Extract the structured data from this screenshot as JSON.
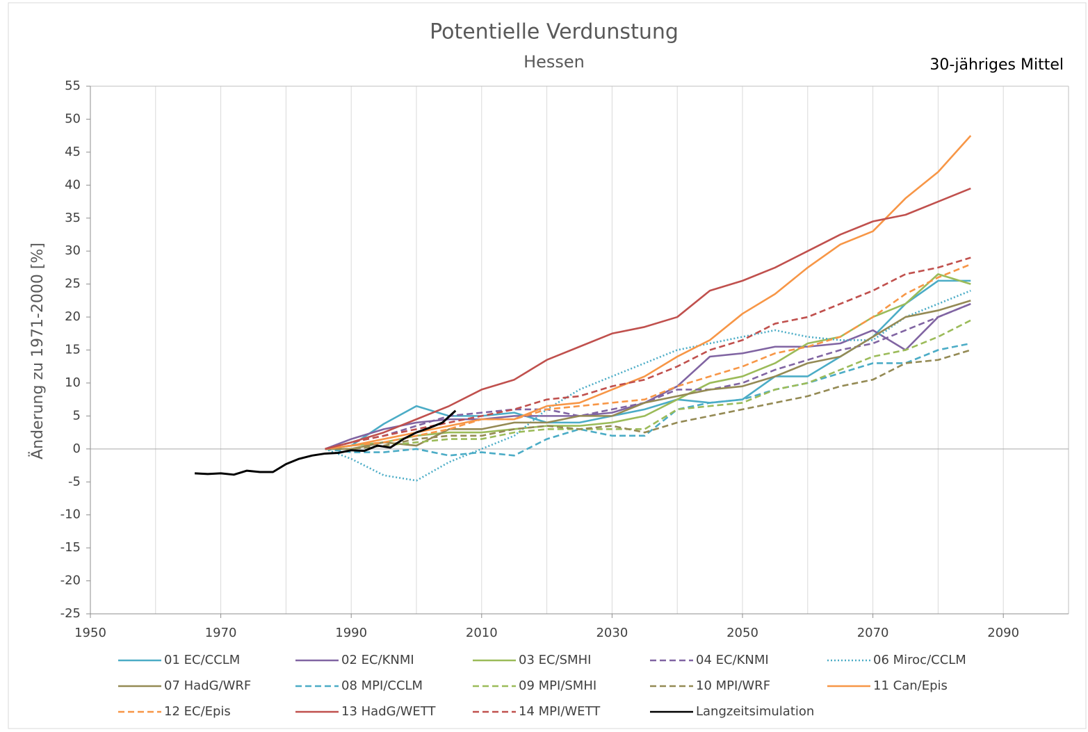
{
  "chart_data": {
    "type": "line",
    "title": "Potentielle Verdunstung",
    "subtitle": "Hessen",
    "annotation": "30-jähriges Mittel",
    "y_label": "Änderung zu 1971-2000 [%]",
    "xlim": [
      1950,
      2100
    ],
    "xticks": [
      1950,
      1970,
      1990,
      2010,
      2030,
      2050,
      2070,
      2090
    ],
    "ylim": [
      -25,
      55
    ],
    "yticks": [
      -25,
      -20,
      -15,
      -10,
      -5,
      0,
      5,
      10,
      15,
      20,
      25,
      30,
      35,
      40,
      45,
      50,
      55
    ],
    "grid": true,
    "x": [
      1986,
      1990,
      1995,
      2000,
      2005,
      2010,
      2015,
      2020,
      2025,
      2030,
      2035,
      2040,
      2045,
      2050,
      2055,
      2060,
      2065,
      2070,
      2075,
      2080,
      2085
    ],
    "series": [
      {
        "name": "01 EC/CCLM",
        "color": "#4bacc6",
        "style": "solid",
        "values": [
          0,
          0.5,
          3.8,
          6.5,
          5,
          5,
          5.5,
          4,
          4,
          5,
          6,
          7.5,
          7,
          7.5,
          11,
          11,
          14,
          17,
          22,
          25.5,
          25.5
        ]
      },
      {
        "name": "02 EC/KNMI",
        "color": "#8064a2",
        "style": "solid",
        "values": [
          0,
          1.5,
          3,
          4,
          4.5,
          4.5,
          5,
          5,
          5,
          5.5,
          7,
          9.5,
          14,
          14.5,
          15.5,
          15.5,
          16,
          18,
          15,
          20,
          22
        ]
      },
      {
        "name": "03 EC/SMHI",
        "color": "#9bbb59",
        "style": "solid",
        "values": [
          0,
          0.5,
          1,
          2,
          2.5,
          2.5,
          3,
          3.5,
          3.5,
          4,
          5,
          7.5,
          10,
          11,
          13,
          16,
          17,
          20,
          22,
          26.5,
          25
        ]
      },
      {
        "name": "04 EC/KNMI",
        "color": "#8064a2",
        "style": "dashed",
        "values": [
          0,
          1,
          2,
          3.5,
          5,
          5.5,
          6,
          6,
          5,
          6,
          7,
          9,
          9,
          10,
          12,
          13.5,
          15,
          16,
          18,
          20,
          22
        ]
      },
      {
        "name": "06 Miroc/CCLM",
        "color": "#4bacc6",
        "style": "dotted",
        "values": [
          0,
          -1.5,
          -4,
          -4.8,
          -2,
          0,
          2,
          6,
          9,
          11,
          13,
          15,
          16,
          17,
          18,
          17,
          16.5,
          16.5,
          20,
          22,
          24
        ]
      },
      {
        "name": "07 HadG/WRF",
        "color": "#948a54",
        "style": "solid",
        "values": [
          0,
          0,
          1,
          0.5,
          3,
          3,
          4,
          4,
          5,
          5,
          7,
          8,
          9,
          9.5,
          11,
          13,
          14,
          17,
          20,
          21,
          22.5
        ]
      },
      {
        "name": "08 MPI/CCLM",
        "color": "#4bacc6",
        "style": "dashed",
        "values": [
          0,
          -0.5,
          -0.5,
          0,
          -1,
          -0.5,
          -1,
          1.5,
          3,
          2,
          2,
          6,
          7,
          7.5,
          9,
          10,
          11.5,
          13,
          13,
          15,
          16
        ]
      },
      {
        "name": "09 MPI/SMHI",
        "color": "#9bbb59",
        "style": "dashed",
        "values": [
          0,
          0,
          0.5,
          1,
          1.5,
          1.5,
          2.5,
          3,
          3,
          3,
          3,
          6,
          6.5,
          7,
          9,
          10,
          12,
          14,
          15,
          17,
          19.5
        ]
      },
      {
        "name": "10 MPI/WRF",
        "color": "#948a54",
        "style": "dashed",
        "values": [
          0,
          0,
          0.5,
          1.5,
          2,
          2,
          3,
          3.5,
          3,
          3.5,
          2.5,
          4,
          5,
          6,
          7,
          8,
          9.5,
          10.5,
          13,
          13.5,
          15
        ]
      },
      {
        "name": "11 Can/Epis",
        "color": "#f79646",
        "style": "solid",
        "values": [
          0,
          0.5,
          1.5,
          2.5,
          3.5,
          4.5,
          4.5,
          6.5,
          7,
          9,
          11,
          14,
          16.5,
          20.5,
          23.5,
          27.5,
          31,
          33,
          38,
          42,
          47.5
        ]
      },
      {
        "name": "12 EC/Epis",
        "color": "#f79646",
        "style": "dashed",
        "values": [
          0,
          0.5,
          1,
          2,
          3,
          4.5,
          4.5,
          6,
          6.5,
          7,
          7.5,
          9.5,
          11,
          12.5,
          14.5,
          15.5,
          17,
          20,
          23.5,
          26,
          28
        ]
      },
      {
        "name": "13 HadG/WETT",
        "color": "#c0504d",
        "style": "solid",
        "values": [
          0,
          1,
          2.5,
          4.5,
          6.5,
          9,
          10.5,
          13.5,
          15.5,
          17.5,
          18.5,
          20,
          24,
          25.5,
          27.5,
          30,
          32.5,
          34.5,
          35.5,
          37.5,
          39.5
        ]
      },
      {
        "name": "14 MPI/WETT",
        "color": "#c0504d",
        "style": "dashed",
        "values": [
          0,
          1,
          2,
          3,
          4,
          5,
          6,
          7.5,
          8,
          9.5,
          10.5,
          12.5,
          15,
          16.5,
          19,
          20,
          22,
          24,
          26.5,
          27.5,
          29
        ]
      },
      {
        "name": "Langzeitsimulation",
        "color": "#000000",
        "style": "solid",
        "x": [
          1966,
          1968,
          1970,
          1972,
          1974,
          1976,
          1978,
          1980,
          1982,
          1984,
          1986,
          1988,
          1990,
          1992,
          1994,
          1996,
          1998,
          2000,
          2002,
          2004,
          2006
        ],
        "values": [
          -3.7,
          -3.8,
          -3.7,
          -3.9,
          -3.3,
          -3.5,
          -3.5,
          -2.3,
          -1.5,
          -1.0,
          -0.7,
          -0.6,
          -0.2,
          -0.3,
          0.5,
          0.2,
          1.5,
          2.5,
          3.2,
          4,
          5.8
        ]
      }
    ]
  }
}
